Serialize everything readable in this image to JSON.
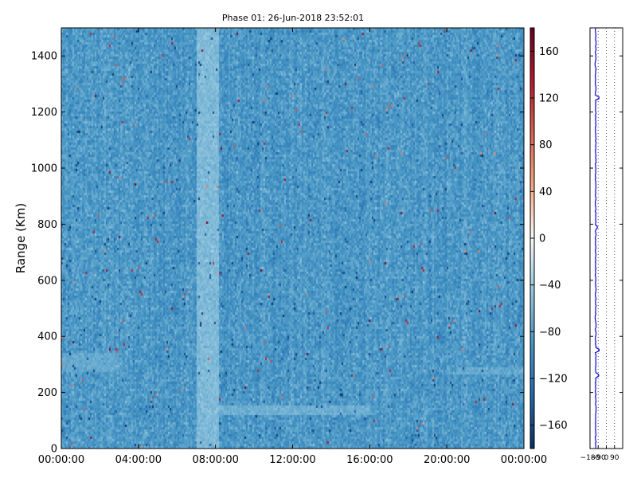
{
  "chart_data": [
    {
      "type": "heatmap",
      "title": "Phase 01: 26-Jun-2018 23:52:01",
      "xlabel": "",
      "ylabel": "Range (Km)",
      "x_tick_labels": [
        "00:00:00",
        "04:00:00",
        "08:00:00",
        "12:00:00",
        "16:00:00",
        "20:00:00",
        "00:00:00"
      ],
      "x_range_hours": [
        0,
        24
      ],
      "y_ticks": [
        0,
        200,
        400,
        600,
        800,
        1000,
        1200,
        1400
      ],
      "ylim": [
        0,
        1500
      ],
      "colorbar": {
        "ticks": [
          -160,
          -120,
          -80,
          -40,
          0,
          40,
          80,
          120,
          160
        ],
        "range": [
          -180,
          180
        ],
        "colormap": "RdBu_r"
      },
      "typical_value": -85,
      "features": [
        {
          "kind": "vertical_band",
          "x_start_hours": 7.0,
          "x_end_hours": 8.2,
          "value": -55
        },
        {
          "kind": "horizontal_band",
          "x_start_hours": 8.2,
          "x_end_hours": 16.0,
          "y_start": 120,
          "y_end": 150,
          "value": -65
        },
        {
          "kind": "diffuse_layer",
          "x_start_hours": 0.0,
          "x_end_hours": 3.0,
          "y_start": 270,
          "y_end": 340,
          "value": -70
        },
        {
          "kind": "diffuse_layer",
          "x_start_hours": 20.5,
          "x_end_hours": 24.0,
          "y_start": 260,
          "y_end": 290,
          "value": -70
        }
      ],
      "grid": false
    },
    {
      "type": "line",
      "title": "",
      "x_tick_labels": [
        "−180",
        "−90",
        "0",
        "90"
      ],
      "xlim": [
        -180,
        180
      ],
      "ylim": [
        0,
        1500
      ],
      "dotted_vertical_lines_at": [
        -90,
        0,
        90
      ],
      "series": [
        {
          "color": "#0000cc",
          "typical_x": -118,
          "spikes": [
            {
              "y": 1250,
              "x": -82
            },
            {
              "y": 790,
              "x": -100
            },
            {
              "y": 350,
              "x": -80
            },
            {
              "y": 260,
              "x": -85
            },
            {
              "y": 1370,
              "x": -125
            }
          ]
        }
      ]
    }
  ]
}
